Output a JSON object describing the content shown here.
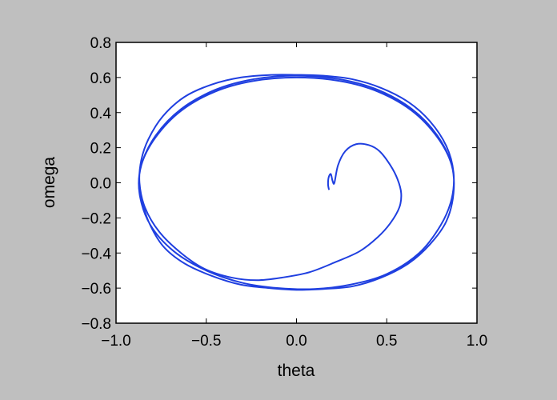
{
  "chart_data": {
    "type": "line",
    "title": "",
    "xlabel": "theta",
    "ylabel": "omega",
    "xlim": [
      -1.0,
      1.0
    ],
    "ylim": [
      -0.8,
      0.8
    ],
    "xticks": [
      "−1.0",
      "−0.5",
      "0.0",
      "0.5",
      "1.0"
    ],
    "yticks": [
      "−0.8",
      "−0.6",
      "−0.4",
      "−0.2",
      "0.0",
      "0.2",
      "0.4",
      "0.6",
      "0.8"
    ],
    "grid": false,
    "legend": "none",
    "series": [
      {
        "color": "#1f3fe0",
        "description": "phase-space trajectory spiralling out from about (0.18, -0.05) onto a limit cycle with theta range about -0.87..0.87 and omega range about -0.61..0.61",
        "x": [
          0.18,
          0.175,
          0.178,
          0.19,
          0.2,
          0.21,
          0.23,
          0.27,
          0.33,
          0.4,
          0.46,
          0.52,
          0.56,
          0.58,
          0.57,
          0.52,
          0.45,
          0.35,
          0.22,
          0.07,
          -0.08,
          -0.22,
          -0.36,
          -0.51,
          -0.64,
          -0.76,
          -0.84,
          -0.87,
          -0.86,
          -0.82,
          -0.74,
          -0.62,
          -0.47,
          -0.31,
          -0.14,
          0.0,
          0.15,
          0.31,
          0.47,
          0.62,
          0.74,
          0.83,
          0.87,
          0.86,
          0.8,
          0.68,
          0.5,
          0.3,
          0.1,
          -0.1,
          -0.3,
          -0.5,
          -0.68,
          -0.81,
          -0.87,
          -0.86,
          -0.78,
          -0.64,
          -0.45,
          -0.24,
          0.0,
          0.24,
          0.45,
          0.64,
          0.78,
          0.86,
          0.87,
          0.83,
          0.74,
          0.62,
          0.47,
          0.31,
          0.15,
          0.0,
          -0.15,
          -0.31,
          -0.47,
          -0.62,
          -0.74,
          -0.82,
          -0.87,
          -0.86,
          -0.78,
          -0.64,
          -0.45,
          -0.24,
          0.0,
          0.24,
          0.45,
          0.64,
          0.78,
          0.86,
          0.87,
          0.83,
          0.74,
          0.62,
          0.47,
          0.31,
          0.15,
          0.0,
          -0.15,
          -0.31,
          -0.47,
          -0.62,
          -0.74,
          -0.82,
          -0.87
        ],
        "y": [
          -0.04,
          -0.01,
          0.03,
          0.05,
          0.01,
          0.0,
          0.1,
          0.18,
          0.22,
          0.215,
          0.18,
          0.1,
          0.02,
          -0.06,
          -0.14,
          -0.23,
          -0.31,
          -0.39,
          -0.45,
          -0.51,
          -0.54,
          -0.555,
          -0.54,
          -0.49,
          -0.4,
          -0.28,
          -0.14,
          0.0,
          0.13,
          0.25,
          0.38,
          0.49,
          0.56,
          0.6,
          0.615,
          0.615,
          0.61,
          0.59,
          0.54,
          0.46,
          0.35,
          0.21,
          0.06,
          -0.09,
          -0.24,
          -0.4,
          -0.52,
          -0.58,
          -0.605,
          -0.6,
          -0.57,
          -0.5,
          -0.39,
          -0.24,
          -0.06,
          0.1,
          0.26,
          0.41,
          0.52,
          0.58,
          0.6,
          0.58,
          0.52,
          0.41,
          0.26,
          0.1,
          -0.06,
          -0.22,
          -0.35,
          -0.46,
          -0.54,
          -0.59,
          -0.605,
          -0.61,
          -0.6,
          -0.58,
          -0.53,
          -0.46,
          -0.36,
          -0.22,
          -0.06,
          0.1,
          0.27,
          0.42,
          0.53,
          0.59,
          0.61,
          0.59,
          0.53,
          0.42,
          0.27,
          0.1,
          -0.06,
          -0.22,
          -0.35,
          -0.46,
          -0.54,
          -0.59,
          -0.605,
          -0.61,
          -0.6,
          -0.58,
          -0.53,
          -0.46,
          -0.36,
          -0.22,
          -0.06
        ]
      }
    ]
  }
}
